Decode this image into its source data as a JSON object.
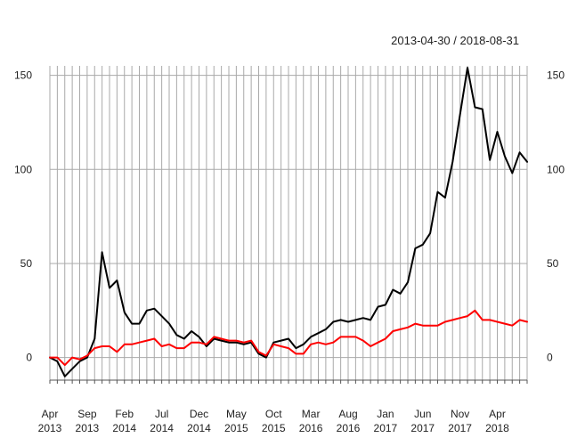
{
  "header": {
    "date_range": "2013-04-30 / 2018-08-31"
  },
  "chart_data": {
    "type": "line",
    "title": "",
    "xlabel": "",
    "ylabel": "",
    "x": [
      "2013-04",
      "2013-05",
      "2013-06",
      "2013-07",
      "2013-08",
      "2013-09",
      "2013-10",
      "2013-11",
      "2013-12",
      "2014-01",
      "2014-02",
      "2014-03",
      "2014-04",
      "2014-05",
      "2014-06",
      "2014-07",
      "2014-08",
      "2014-09",
      "2014-10",
      "2014-11",
      "2014-12",
      "2015-01",
      "2015-02",
      "2015-03",
      "2015-04",
      "2015-05",
      "2015-06",
      "2015-07",
      "2015-08",
      "2015-09",
      "2015-10",
      "2015-11",
      "2015-12",
      "2016-01",
      "2016-02",
      "2016-03",
      "2016-04",
      "2016-05",
      "2016-06",
      "2016-07",
      "2016-08",
      "2016-09",
      "2016-10",
      "2016-11",
      "2016-12",
      "2017-01",
      "2017-02",
      "2017-03",
      "2017-04",
      "2017-05",
      "2017-06",
      "2017-07",
      "2017-08",
      "2017-09",
      "2017-10",
      "2017-11",
      "2017-12",
      "2018-01",
      "2018-02",
      "2018-03",
      "2018-04",
      "2018-05",
      "2018-06",
      "2018-07",
      "2018-08"
    ],
    "series": [
      {
        "color": "#000000",
        "values": [
          0,
          -2,
          -10,
          -6,
          -2,
          0,
          10,
          56,
          37,
          41,
          24,
          18,
          18,
          25,
          26,
          22,
          18,
          12,
          10,
          14,
          11,
          6,
          10,
          9,
          8,
          8,
          7,
          8,
          2,
          0,
          8,
          9,
          10,
          5,
          7,
          11,
          13,
          15,
          19,
          20,
          19,
          20,
          21,
          20,
          27,
          28,
          36,
          34,
          40,
          58,
          60,
          66,
          88,
          85,
          104,
          129,
          154,
          133,
          132,
          105,
          120,
          107,
          98,
          109,
          104
        ]
      },
      {
        "color": "#ff0000",
        "values": [
          0,
          0,
          -4,
          0,
          -1,
          1,
          5,
          6,
          6,
          3,
          7,
          7,
          8,
          9,
          10,
          6,
          7,
          5,
          5,
          8,
          8,
          7,
          11,
          10,
          9,
          9,
          8,
          9,
          3,
          1,
          7,
          6,
          5,
          2,
          2,
          7,
          8,
          7,
          8,
          11,
          11,
          11,
          9,
          6,
          8,
          10,
          14,
          15,
          16,
          18,
          17,
          17,
          17,
          19,
          20,
          21,
          22,
          25,
          20,
          20,
          19,
          18,
          17,
          20,
          19
        ]
      }
    ],
    "ylim": [
      -12,
      155
    ],
    "yticks": [
      0,
      50,
      100,
      150
    ],
    "yticks_right": [
      0,
      50,
      100,
      150
    ],
    "xtick_labels": [
      {
        "month": "Apr",
        "year": "2013"
      },
      {
        "month": "Sep",
        "year": "2013"
      },
      {
        "month": "Feb",
        "year": "2014"
      },
      {
        "month": "Jul",
        "year": "2014"
      },
      {
        "month": "Dec",
        "year": "2014"
      },
      {
        "month": "May",
        "year": "2015"
      },
      {
        "month": "Oct",
        "year": "2015"
      },
      {
        "month": "Mar",
        "year": "2016"
      },
      {
        "month": "Aug",
        "year": "2016"
      },
      {
        "month": "Jan",
        "year": "2017"
      },
      {
        "month": "Jun",
        "year": "2017"
      },
      {
        "month": "Nov",
        "year": "2017"
      },
      {
        "month": "Apr",
        "year": "2018"
      }
    ],
    "grid": true,
    "legend": "none"
  }
}
